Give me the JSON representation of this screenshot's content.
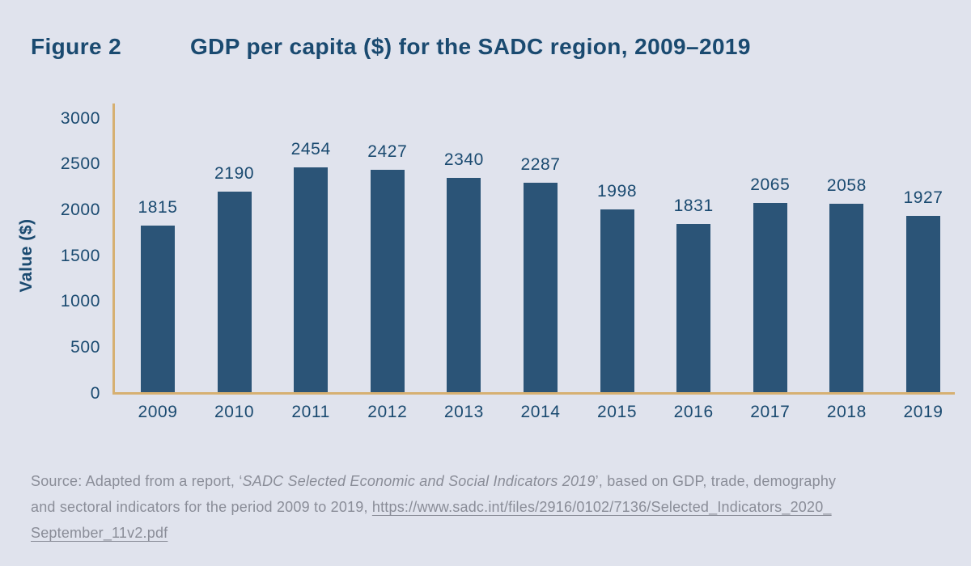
{
  "figure": {
    "label": "Figure 2",
    "title": "GDP per capita ($) for the SADC region, 2009–2019"
  },
  "chart_data": {
    "type": "bar",
    "categories": [
      "2009",
      "2010",
      "2011",
      "2012",
      "2013",
      "2014",
      "2015",
      "2016",
      "2017",
      "2018",
      "2019"
    ],
    "values": [
      1815,
      2190,
      2454,
      2427,
      2340,
      2287,
      1998,
      1831,
      2065,
      2058,
      1927
    ],
    "title": "GDP per capita ($) for the SADC region, 2009–2019",
    "xlabel": "",
    "ylabel": "Value ($)",
    "ylim": [
      0,
      3000
    ],
    "yticks": [
      0,
      500,
      1000,
      1500,
      2000,
      2500,
      3000
    ],
    "grid": false,
    "legend": false,
    "data_labels": true
  },
  "colors": {
    "background": "#E0E3ED",
    "bar": "#2B5477",
    "axis_line": "#D6B072",
    "text_navy": "#1A4A70",
    "source_gray": "#8A8D98"
  },
  "source": {
    "prefix": "Source: Adapted from a report, ‘",
    "report_title": "SADC Selected Economic and Social Indicators 2019",
    "after_title_line1": "’, based on GDP, trade, demography",
    "line2_text": "and sectoral indicators for the period 2009 to 2019, ",
    "url_line1": "https://www.sadc.int/files/2916/0102/7136/Selected_Indicators_2020_",
    "url_line2": "September_11v2.pdf"
  }
}
